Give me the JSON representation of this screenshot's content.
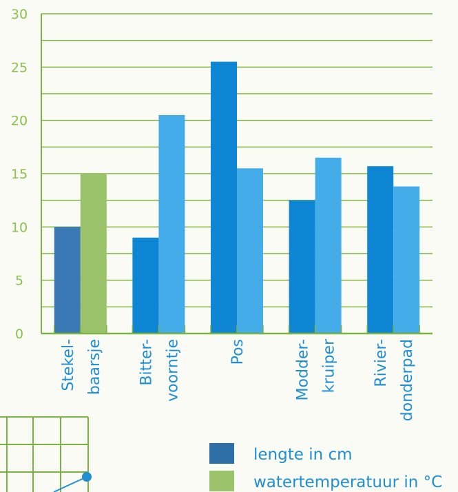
{
  "chart_data": {
    "type": "bar",
    "categories": [
      [
        "Stekel-",
        "baarsje"
      ],
      [
        "Bitter-",
        "voorntje"
      ],
      [
        "Pos"
      ],
      [
        "Modder-",
        "kruiper"
      ],
      [
        "Rivier-",
        "donderpad"
      ]
    ],
    "series": [
      {
        "name": "lengte in cm",
        "values": [
          10,
          9,
          25.5,
          12.5,
          15.7
        ]
      },
      {
        "name": "watertemperatuur in °C",
        "values": [
          15,
          20.5,
          15.5,
          16.5,
          13.8
        ]
      }
    ],
    "ylim": [
      0,
      30
    ],
    "yticks": [
      0,
      5,
      10,
      15,
      20,
      25,
      30
    ],
    "grid": true,
    "legend_position": "bottom-right"
  },
  "colors": {
    "legend_length": "#2e6fa8",
    "legend_temp": "#9bc36b",
    "first_length": "#3a78b6",
    "first_temp": "#9bc36b",
    "length": "#0f86d4",
    "temp": "#45acea",
    "grid": "#7cb342",
    "tick": "#8bbf4b",
    "label": "#1f8fd1"
  }
}
